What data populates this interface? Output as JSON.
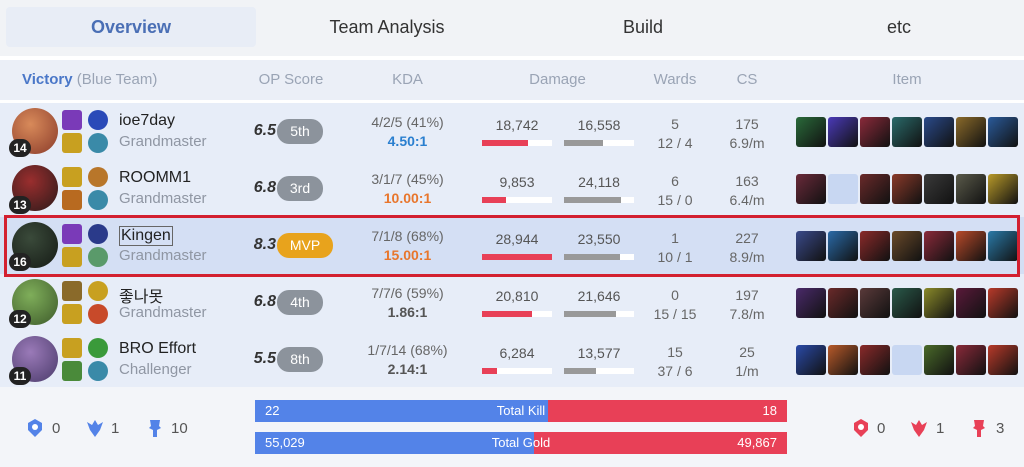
{
  "tabs": [
    "Overview",
    "Team Analysis",
    "Build",
    "etc"
  ],
  "header": {
    "result": "Victory",
    "team": "(Blue Team)",
    "op_score": "OP Score",
    "kda": "KDA",
    "damage": "Damage",
    "wards": "Wards",
    "cs": "CS",
    "item": "Item"
  },
  "players": [
    {
      "level": "14",
      "name": "ioe7day",
      "tier": "Grandmaster",
      "op_score": "6.5",
      "rank": "5th",
      "kda": "4/2/5 (41%)",
      "kda_ratio": "4.50:1",
      "kda_color": "#2a7fcf",
      "damage_dealt": "18,742",
      "damage_dealt_pct": 0.65,
      "damage_taken": "16,558",
      "damage_taken_pct": 0.55,
      "wards": "5",
      "wards_detail": "12 / 4",
      "cs": "175",
      "cs_per_min": "6.9/m"
    },
    {
      "level": "13",
      "name": "ROOMM1",
      "tier": "Grandmaster",
      "op_score": "6.8",
      "rank": "3rd",
      "kda": "3/1/7 (45%)",
      "kda_ratio": "10.00:1",
      "kda_color": "#e8762c",
      "damage_dealt": "9,853",
      "damage_dealt_pct": 0.34,
      "damage_taken": "24,118",
      "damage_taken_pct": 0.82,
      "wards": "6",
      "wards_detail": "15 / 0",
      "cs": "163",
      "cs_per_min": "6.4/m"
    },
    {
      "level": "16",
      "name": "Kingen",
      "tier": "Grandmaster",
      "op_score": "8.3",
      "rank": "MVP",
      "kda": "7/1/8 (68%)",
      "kda_ratio": "15.00:1",
      "kda_color": "#e8762c",
      "damage_dealt": "28,944",
      "damage_dealt_pct": 1.0,
      "damage_taken": "23,550",
      "damage_taken_pct": 0.8,
      "wards": "1",
      "wards_detail": "10 / 1",
      "cs": "227",
      "cs_per_min": "8.9/m"
    },
    {
      "level": "12",
      "name": "좋나못",
      "tier": "Grandmaster",
      "op_score": "6.8",
      "rank": "4th",
      "kda": "7/7/6 (59%)",
      "kda_ratio": "1.86:1",
      "kda_color": "#555555",
      "damage_dealt": "20,810",
      "damage_dealt_pct": 0.72,
      "damage_taken": "21,646",
      "damage_taken_pct": 0.74,
      "wards": "0",
      "wards_detail": "15 / 15",
      "cs": "197",
      "cs_per_min": "7.8/m"
    },
    {
      "level": "11",
      "name": "BRO Effort",
      "tier": "Challenger",
      "op_score": "5.5",
      "rank": "8th",
      "kda": "1/7/14 (68%)",
      "kda_ratio": "2.14:1",
      "kda_color": "#555555",
      "damage_dealt": "6,284",
      "damage_dealt_pct": 0.22,
      "damage_taken": "13,577",
      "damage_taken_pct": 0.46,
      "wards": "15",
      "wards_detail": "37 / 6",
      "cs": "25",
      "cs_per_min": "1/m"
    }
  ],
  "summary": {
    "blue_objectives": [
      "0",
      "1",
      "10"
    ],
    "red_objectives": [
      "0",
      "1",
      "3"
    ],
    "total_kill_label": "Total Kill",
    "blue_kills": "22",
    "red_kills": "18",
    "total_gold_label": "Total Gold",
    "blue_gold": "55,029",
    "red_gold": "49,867"
  },
  "colors": {
    "blue": "#5383e8",
    "red": "#e84057",
    "mvp": "#e8a31c",
    "highlight_outline": "#d32030"
  }
}
